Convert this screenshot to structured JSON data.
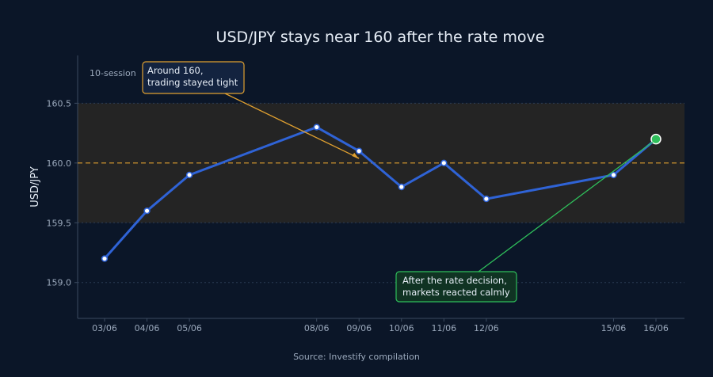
{
  "chart_data": {
    "type": "line",
    "title": "USD/JPY stays near 160 after the rate move",
    "ylabel": "USD/JPY",
    "xlabel": "",
    "source": "Source: Investify compilation",
    "x": [
      "2024-06-03",
      "2024-06-04",
      "2024-06-05",
      "2024-06-08",
      "2024-06-09",
      "2024-06-10",
      "2024-06-11",
      "2024-06-12",
      "2024-06-15",
      "2024-06-16"
    ],
    "x_tick_labels": [
      "03/06",
      "04/06",
      "05/06",
      "08/06",
      "09/06",
      "10/06",
      "11/06",
      "12/06",
      "15/06",
      "16/06"
    ],
    "series": [
      {
        "values": [
          159.2,
          159.6,
          159.9,
          160.3,
          160.1,
          159.8,
          160.0,
          159.7,
          159.9,
          160.2
        ]
      }
    ],
    "ylim": [
      158.7,
      160.9
    ],
    "y_ticks": [
      159.0,
      159.5,
      160.0,
      160.5
    ],
    "y_tick_labels": [
      "159.0",
      "159.5",
      "160.0",
      "160.5"
    ],
    "band": {
      "from": 159.5,
      "to": 160.5,
      "label": "10-session"
    },
    "reference_line": {
      "y": 160.0,
      "style": "dashed",
      "color": "#e0a030"
    },
    "annotations": [
      {
        "text_lines": [
          "Around 160,",
          "trading stayed tight"
        ],
        "target_x": "2024-06-09",
        "target_y": 160.0,
        "color": "#e0a030"
      },
      {
        "text_lines": [
          "After the rate decision,",
          "markets reacted calmly"
        ],
        "target_x": "2024-06-16",
        "target_y": 160.2,
        "color": "#2fbf5b"
      }
    ],
    "colors": {
      "background": "#0b1628",
      "line": "#2f63d6",
      "band": "#242424",
      "grid": "#2a3a52",
      "last_point": "#2fbf5b"
    },
    "grid": true
  }
}
